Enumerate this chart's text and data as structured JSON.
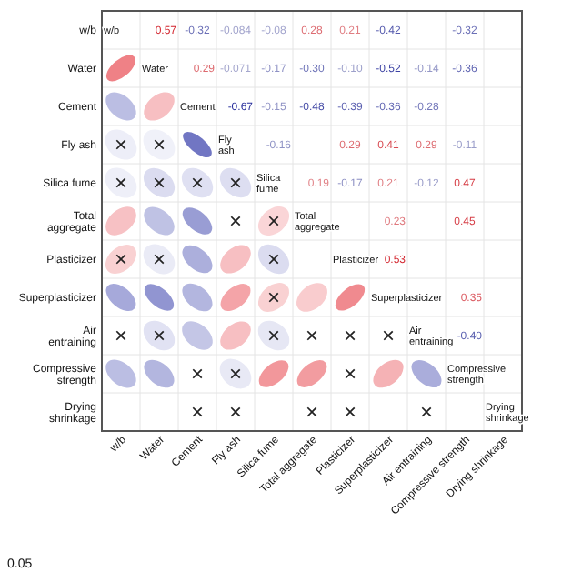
{
  "chart_data": {
    "type": "heatmap",
    "grid": true,
    "categories": [
      "w/b",
      "Water",
      "Cement",
      "Fly ash",
      "Silica fume",
      "Total aggregate",
      "Plasticizer",
      "Superplasticizer",
      "Air entraining",
      "Compressive strength",
      "Drying shrinkage"
    ],
    "y_categories": [
      "w/b",
      "Water",
      "Cement",
      "Fly ash",
      "Silica fume",
      "Total aggregate",
      "Plasticizer",
      "Superplasticizer",
      "Air entraining",
      "Compressive strength",
      "Drying shrinkage"
    ],
    "cells": [
      [
        null,
        0.57,
        -0.32,
        -0.084,
        -0.08,
        0.28,
        0.21,
        -0.42,
        null,
        -0.32,
        null
      ],
      [
        null,
        null,
        0.29,
        -0.071,
        -0.17,
        -0.3,
        -0.1,
        -0.52,
        -0.14,
        -0.36,
        null
      ],
      [
        null,
        null,
        null,
        -0.67,
        -0.15,
        -0.48,
        -0.39,
        -0.36,
        -0.28,
        null,
        null
      ],
      [
        null,
        null,
        null,
        null,
        -0.16,
        null,
        0.29,
        0.41,
        0.29,
        -0.11,
        null
      ],
      [
        null,
        null,
        null,
        null,
        null,
        0.19,
        -0.17,
        0.21,
        -0.12,
        0.47,
        null
      ],
      [
        null,
        null,
        null,
        null,
        null,
        null,
        null,
        0.23,
        null,
        0.45,
        null
      ],
      [
        null,
        null,
        null,
        null,
        null,
        null,
        null,
        0.53,
        null,
        null,
        null
      ],
      [
        null,
        null,
        null,
        null,
        null,
        null,
        null,
        null,
        null,
        0.35,
        null
      ],
      [
        null,
        null,
        null,
        null,
        null,
        null,
        null,
        null,
        null,
        -0.4,
        null
      ],
      [
        null,
        null,
        null,
        null,
        null,
        null,
        null,
        null,
        null,
        null,
        null
      ],
      [
        null,
        null,
        null,
        null,
        null,
        null,
        null,
        null,
        null,
        null,
        null
      ]
    ],
    "cell_labels": [
      [
        null,
        "0.57",
        "-0.32",
        "-0.084",
        "-0.08",
        "0.28",
        "0.21",
        "-0.42",
        null,
        "-0.32",
        null
      ],
      [
        null,
        null,
        "0.29",
        "-0.071",
        "-0.17",
        "-0.30",
        "-0.10",
        "-0.52",
        "-0.14",
        "-0.36",
        null
      ],
      [
        null,
        null,
        null,
        "-0.67",
        "-0.15",
        "-0.48",
        "-0.39",
        "-0.36",
        "-0.28",
        null,
        null
      ],
      [
        "×",
        "×",
        null,
        null,
        "-0.16",
        null,
        "0.29",
        "0.41",
        "0.29",
        "-0.11",
        null
      ],
      [
        "×",
        "×",
        "×",
        "×",
        null,
        "0.19",
        "-0.17",
        "0.21",
        "-0.12",
        "0.47",
        null
      ],
      [
        null,
        null,
        null,
        "×",
        "×",
        null,
        null,
        "0.23",
        null,
        "0.45",
        null
      ],
      [
        "×",
        "×",
        null,
        null,
        "×",
        null,
        null,
        "0.53",
        null,
        null,
        null
      ],
      [
        null,
        null,
        null,
        null,
        "×",
        null,
        null,
        null,
        null,
        "0.35",
        null
      ],
      [
        "×",
        "×",
        null,
        null,
        "×",
        "×",
        "×",
        "×",
        null,
        "-0.40",
        null
      ],
      [
        null,
        null,
        "×",
        "×",
        null,
        null,
        "×",
        null,
        null,
        null,
        null
      ],
      [
        null,
        null,
        "×",
        "×",
        null,
        "×",
        "×",
        null,
        "×",
        null,
        null
      ]
    ],
    "annotations": [
      "0.05"
    ]
  }
}
